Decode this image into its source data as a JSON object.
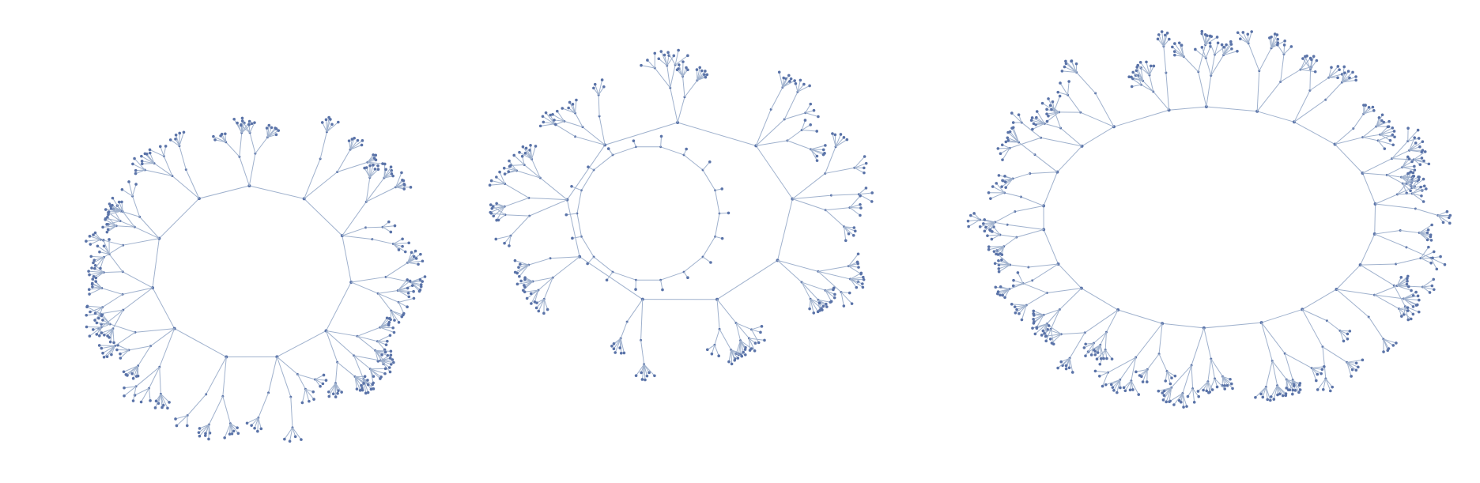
{
  "graphs": [
    {
      "kind": "cycle-with-trees",
      "cycle_length": 11,
      "tree_depth": 3,
      "seed": 11
    },
    {
      "kind": "cycle-with-trees",
      "cycle_length": 9,
      "tree_depth": 3,
      "seed": 29,
      "inner_cycle_length": 18
    },
    {
      "kind": "cycle-with-trees",
      "cycle_length": 22,
      "tree_depth": 3,
      "seed": 47
    }
  ],
  "colors": {
    "edge": "#9fb1cd",
    "node": "#5a73a8",
    "background": "#ffffff"
  }
}
